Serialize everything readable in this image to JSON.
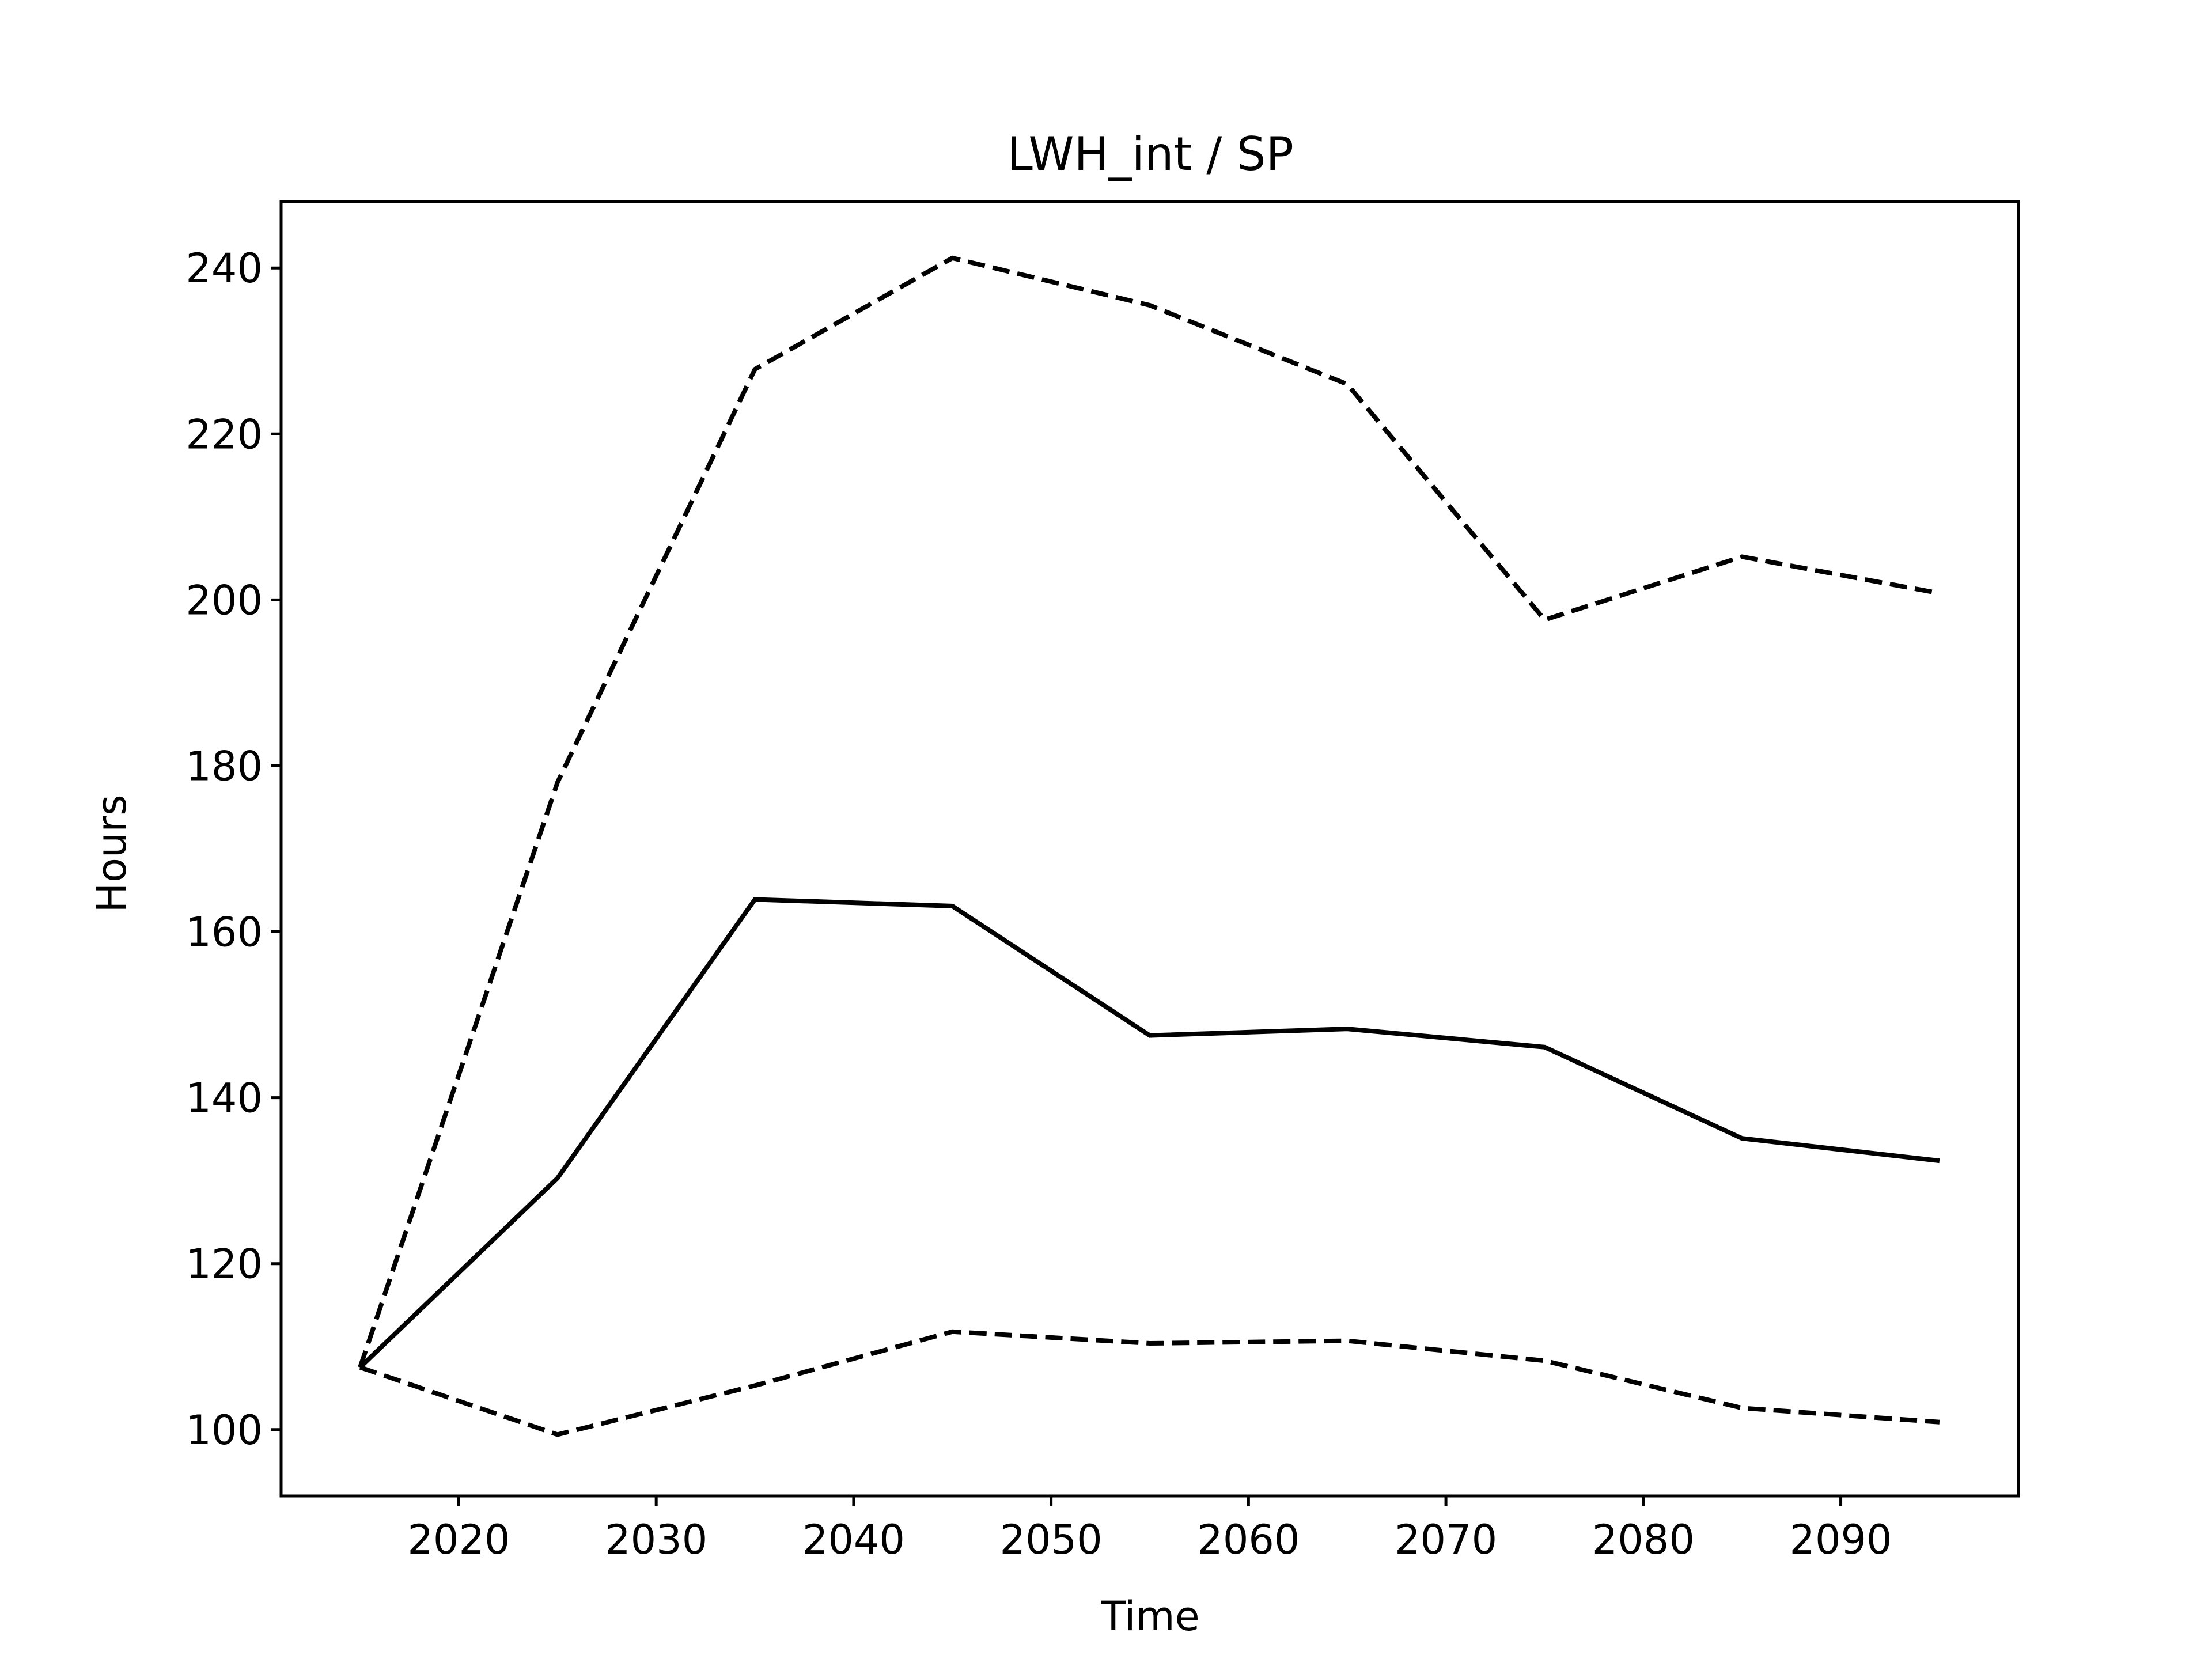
{
  "chart_data": {
    "type": "line",
    "title": "LWH_int / SP",
    "xlabel": "Time",
    "ylabel": "Hours",
    "xlim": [
      2011,
      2099
    ],
    "ylim": [
      92,
      248
    ],
    "xticks": [
      2020,
      2030,
      2040,
      2050,
      2060,
      2070,
      2080,
      2090
    ],
    "yticks": [
      100,
      120,
      140,
      160,
      180,
      200,
      220,
      240
    ],
    "grid": false,
    "legend": "none",
    "x": [
      2015,
      2025,
      2035,
      2045,
      2055,
      2065,
      2075,
      2085,
      2095
    ],
    "series": [
      {
        "style": "solid",
        "color": "#000000",
        "values": [
          107.5,
          130.3,
          163.9,
          163.1,
          147.5,
          148.3,
          146.1,
          135.1,
          132.4
        ]
      },
      {
        "style": "dashed",
        "color": "#000000",
        "values": [
          107.5,
          178.0,
          227.8,
          241.2,
          235.5,
          226.0,
          197.6,
          205.2,
          200.8
        ]
      },
      {
        "style": "dashed",
        "color": "#000000",
        "values": [
          107.5,
          99.4,
          105.3,
          111.8,
          110.4,
          110.7,
          108.3,
          102.6,
          100.9
        ]
      }
    ]
  }
}
